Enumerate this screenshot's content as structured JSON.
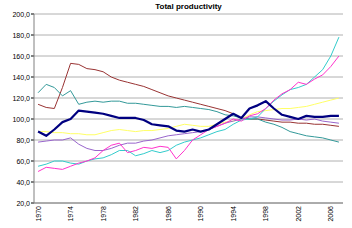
{
  "chart_data": {
    "type": "line",
    "title": "Total productivity",
    "categories": [
      "1970",
      null,
      null,
      null,
      "1974",
      null,
      null,
      null,
      "1978",
      null,
      null,
      null,
      "1982",
      null,
      null,
      null,
      "1986",
      null,
      null,
      null,
      "1990",
      null,
      null,
      null,
      "1994",
      null,
      null,
      null,
      "1998",
      null,
      null,
      null,
      "2002",
      null,
      null,
      null,
      "2006",
      null
    ],
    "ylim": [
      20,
      200
    ],
    "yticks": [
      {
        "value": 20,
        "label": "20,0"
      },
      {
        "value": 40,
        "label": "40,0"
      },
      {
        "value": 60,
        "label": "60,0"
      },
      {
        "value": 80,
        "label": "80,0"
      },
      {
        "value": 100,
        "label": "100,0"
      },
      {
        "value": 120,
        "label": "120,0"
      },
      {
        "value": 140,
        "label": "140,0"
      },
      {
        "value": 160,
        "label": "160,0"
      },
      {
        "value": 180,
        "label": "180,0"
      },
      {
        "value": 200,
        "label": "200,0"
      }
    ],
    "grid": true,
    "series": [
      {
        "color": "#993333",
        "values": [
          114,
          111,
          110,
          130,
          153,
          152,
          148,
          147,
          145,
          140,
          137,
          135,
          133,
          131,
          128,
          125,
          122,
          120,
          118,
          116,
          114,
          112,
          110,
          108,
          105,
          101,
          100,
          100,
          99,
          98,
          97,
          97,
          96,
          96,
          95,
          95,
          94,
          93
        ]
      },
      {
        "color": "#339999",
        "values": [
          125,
          133,
          130,
          122,
          127,
          114,
          116,
          117,
          116,
          117,
          117,
          115,
          115,
          114,
          113,
          112,
          112,
          111,
          112,
          111,
          110,
          109,
          107,
          104,
          103,
          101,
          100,
          100,
          97,
          95,
          92,
          88,
          86,
          84,
          83,
          82,
          80,
          78
        ]
      },
      {
        "color": "#ffff66",
        "values": [
          88,
          88,
          87,
          87,
          86,
          86,
          85,
          85,
          87,
          89,
          90,
          89,
          88,
          89,
          89,
          90,
          91,
          93,
          95,
          94,
          93,
          93,
          95,
          97,
          98,
          100,
          104,
          107,
          108,
          109,
          110,
          110,
          111,
          112,
          114,
          116,
          118,
          120
        ]
      },
      {
        "color": "#9966cc",
        "values": [
          78,
          79,
          80,
          80,
          82,
          76,
          72,
          70,
          70,
          72,
          75,
          77,
          77,
          79,
          80,
          82,
          84,
          85,
          86,
          87,
          88,
          90,
          93,
          96,
          98,
          100,
          102,
          102,
          101,
          100,
          99,
          99,
          100,
          99,
          100,
          98,
          97,
          96
        ]
      },
      {
        "color": "#33cccc",
        "values": [
          55,
          57,
          60,
          60,
          58,
          57,
          60,
          62,
          63,
          66,
          70,
          70,
          65,
          67,
          70,
          68,
          70,
          75,
          78,
          80,
          82,
          85,
          88,
          90,
          95,
          99,
          100,
          102,
          110,
          117,
          123,
          128,
          130,
          133,
          140,
          147,
          160,
          178
        ]
      },
      {
        "color": "#ff33cc",
        "values": [
          50,
          54,
          53,
          52,
          55,
          58,
          60,
          63,
          70,
          75,
          77,
          68,
          70,
          73,
          72,
          74,
          73,
          62,
          70,
          80,
          85,
          90,
          93,
          96,
          100,
          98,
          103,
          105,
          110,
          118,
          124,
          128,
          135,
          133,
          138,
          142,
          150,
          160
        ]
      },
      {
        "color": "#000080",
        "values": [
          88,
          84,
          90,
          97,
          100,
          108,
          107,
          106,
          105,
          103,
          101,
          101,
          101,
          99,
          95,
          94,
          93,
          89,
          88,
          90,
          88,
          90,
          95,
          100,
          105,
          101,
          110,
          113,
          117,
          110,
          104,
          102,
          100,
          103,
          102,
          102,
          103,
          103
        ]
      }
    ]
  }
}
